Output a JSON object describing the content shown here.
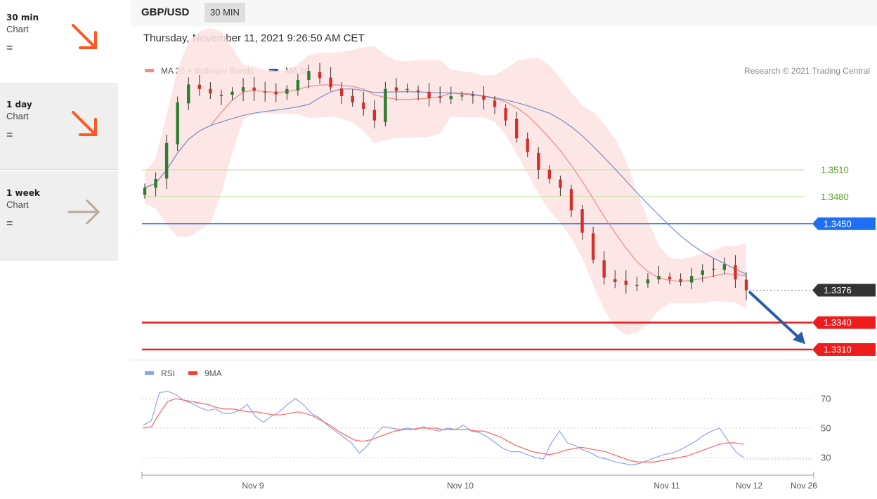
{
  "sidebar": {
    "items": [
      {
        "title": "30 min",
        "sub": "Chart",
        "eq": "=",
        "icon": "arrow-down-right-icon",
        "color": "#ff5722"
      },
      {
        "title": "1 day",
        "sub": "Chart",
        "eq": "=",
        "icon": "arrow-down-right-icon",
        "color": "#ff5722"
      },
      {
        "title": "1 week",
        "sub": "Chart",
        "eq": "=",
        "icon": "arrow-right-icon",
        "color": "#b8a89a"
      }
    ]
  },
  "header": {
    "pair": "GBP/USD",
    "timeframe": "30 MIN"
  },
  "datetime": "Thursday, November 11, 2021 9:26:50 AM CET",
  "chart_data": [
    {
      "type": "candlestick",
      "legend": [
        "MA 20 + Bollinger Bands",
        "MA 50"
      ],
      "legend_placement": "top-left",
      "copyright": "Research © 2021 Trading Central",
      "ylim": [
        1.3295,
        1.3666
      ],
      "x_ticks": [
        "Nov 9",
        "Nov 10",
        "Nov 11",
        "Nov 12",
        "Nov 26"
      ],
      "levels": [
        {
          "value": 1.351,
          "label": "1.3510",
          "kind": "green"
        },
        {
          "value": 1.348,
          "label": "1.3480",
          "kind": "green"
        },
        {
          "value": 1.345,
          "label": "1.3450",
          "kind": "blue"
        },
        {
          "value": 1.3376,
          "label": "1.3376",
          "kind": "last"
        },
        {
          "value": 1.334,
          "label": "1.3340",
          "kind": "red"
        },
        {
          "value": 1.331,
          "label": "1.3310",
          "kind": "red"
        }
      ],
      "forecast_arrow": {
        "from": 1.3376,
        "to": 1.3316
      },
      "close_path": [
        1.349,
        1.35,
        1.354,
        1.3585,
        1.3605,
        1.36,
        1.3595,
        1.3592,
        1.3597,
        1.3602,
        1.3598,
        1.3596,
        1.3594,
        1.36,
        1.361,
        1.362,
        1.3612,
        1.3602,
        1.3592,
        1.3585,
        1.3578,
        1.3565,
        1.36,
        1.3598,
        1.36,
        1.3597,
        1.359,
        1.359,
        1.3592,
        1.3593,
        1.3592,
        1.3588,
        1.358,
        1.3565,
        1.3545,
        1.353,
        1.351,
        1.35,
        1.349,
        1.3465,
        1.344,
        1.341,
        1.339,
        1.3385,
        1.3382,
        1.3382,
        1.3388,
        1.3392,
        1.3388,
        1.3385,
        1.3392,
        1.3398,
        1.34,
        1.3405,
        1.3388,
        1.3376
      ],
      "colors": {
        "up": "#2e7d32",
        "down": "#d32f2f",
        "ma20": "#f28b82",
        "band": "#fde2e2",
        "ma50": "#7a8fc7"
      }
    },
    {
      "type": "line",
      "legend": [
        "RSI",
        "9MA"
      ],
      "ylim": [
        20,
        85
      ],
      "y_ticks": [
        "70",
        "50",
        "30"
      ],
      "rsi_path": [
        52,
        55,
        74,
        75,
        73,
        69,
        67,
        64,
        62,
        63,
        60,
        60,
        62,
        66,
        58,
        54,
        58,
        61,
        66,
        70,
        66,
        60,
        57,
        52,
        48,
        44,
        40,
        33,
        38,
        46,
        51,
        50,
        49,
        50,
        49,
        51,
        49,
        48,
        50,
        49,
        52,
        48,
        47,
        44,
        40,
        36,
        34,
        34,
        32,
        30,
        29,
        40,
        48,
        40,
        38,
        35,
        33,
        30,
        29,
        27,
        26,
        25,
        26,
        28,
        30,
        32,
        33,
        35,
        38,
        41,
        45,
        48,
        50,
        42,
        34,
        30
      ],
      "ma9_path": [
        50,
        51,
        60,
        68,
        70,
        69,
        68,
        67,
        66,
        64,
        63,
        63,
        62,
        61,
        61,
        60,
        59,
        59,
        60,
        61,
        60,
        58,
        55,
        52,
        48,
        45,
        42,
        41,
        42,
        44,
        46,
        48,
        49,
        49,
        50,
        50,
        50,
        49,
        49,
        49,
        49,
        48,
        48,
        46,
        44,
        41,
        38,
        36,
        34,
        33,
        32,
        33,
        35,
        36,
        37,
        36,
        35,
        34,
        32,
        30,
        28,
        27,
        27,
        27,
        28,
        29,
        30,
        31,
        33,
        35,
        37,
        39,
        40,
        40,
        39
      ],
      "colors": {
        "rsi": "#8ea4e8",
        "ma9": "#ff6b6b"
      }
    }
  ]
}
